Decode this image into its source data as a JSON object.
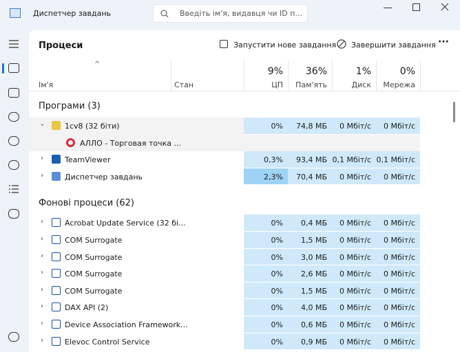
{
  "title_bar": {
    "app_title": "Диспетчер завдань",
    "search_placeholder": "Введіть ім'я, видавця чи ID п..."
  },
  "toolbar": {
    "title": "Процеси",
    "run_new_task": "Запустити нове завдання",
    "end_task": "Завершити завдання"
  },
  "columns": {
    "name": "Ім'я",
    "status": "Стан",
    "cpu": {
      "total": "9%",
      "label": "ЦП"
    },
    "memory": {
      "total": "36%",
      "label": "Пам'ять"
    },
    "disk": {
      "total": "1%",
      "label": "Диск"
    },
    "network": {
      "total": "0%",
      "label": "Мережа"
    }
  },
  "groups": [
    {
      "title": "Програми (3)",
      "rows": [
        {
          "name": "1cv8 (32 біти)",
          "cpu": "0%",
          "memory": "74,8 МБ",
          "disk": "0 Мбіт/с",
          "network": "0 Мбіт/с",
          "expanded": true,
          "children": [
            {
              "name": "АЛЛО - Торговая точка ..."
            }
          ]
        },
        {
          "name": "TeamViewer",
          "cpu": "0,3%",
          "memory": "93,4 МБ",
          "disk": "0,1 Мбіт/с",
          "network": "0,1 Мбіт/с"
        },
        {
          "name": "Диспетчер завдань",
          "cpu": "2,3%",
          "memory": "70,4 МБ",
          "disk": "0 Мбіт/с",
          "network": "0 Мбіт/с"
        }
      ]
    },
    {
      "title": "Фонові процеси (62)",
      "rows": [
        {
          "name": "Acrobat Update Service (32 бі...",
          "cpu": "0%",
          "memory": "0,4 МБ",
          "disk": "0 Мбіт/с",
          "network": "0 Мбіт/с"
        },
        {
          "name": "COM Surrogate",
          "cpu": "0%",
          "memory": "1,5 МБ",
          "disk": "0 Мбіт/с",
          "network": "0 Мбіт/с"
        },
        {
          "name": "COM Surrogate",
          "cpu": "0%",
          "memory": "3,0 МБ",
          "disk": "0 Мбіт/с",
          "network": "0 Мбіт/с"
        },
        {
          "name": "COM Surrogate",
          "cpu": "0%",
          "memory": "2,6 МБ",
          "disk": "0 Мбіт/с",
          "network": "0 Мбіт/с"
        },
        {
          "name": "COM Surrogate",
          "cpu": "0%",
          "memory": "1,5 МБ",
          "disk": "0 Мбіт/с",
          "network": "0 Мбіт/с"
        },
        {
          "name": "DAX API (2)",
          "cpu": "0%",
          "memory": "4,0 МБ",
          "disk": "0 Мбіт/с",
          "network": "0 Мбіт/с"
        },
        {
          "name": "Device Association Framework...",
          "cpu": "0%",
          "memory": "0,6 МБ",
          "disk": "0 Мбіт/с",
          "network": "0 Мбіт/с"
        },
        {
          "name": "Elevoc Control Service",
          "cpu": "0%",
          "memory": "0,9 МБ",
          "disk": "0 Мбіт/с",
          "network": "0 Мбіт/с"
        }
      ]
    }
  ]
}
